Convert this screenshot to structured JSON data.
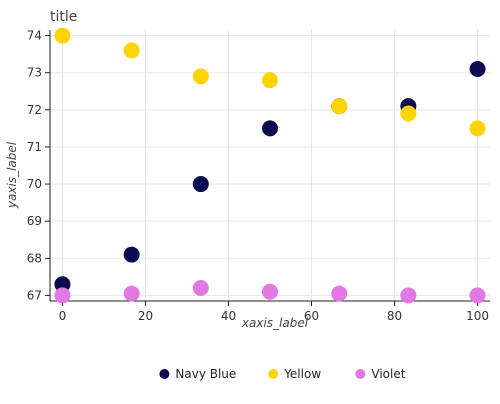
{
  "chart_data": {
    "type": "scatter",
    "title": "title",
    "xlabel": "xaxis_label",
    "ylabel": "yaxis_label",
    "x": [
      0,
      16.67,
      33.33,
      50,
      66.67,
      83.33,
      100
    ],
    "series": [
      {
        "name": "Navy Blue",
        "color": "#0b0b4f",
        "values": [
          67.3,
          68.1,
          70.0,
          71.5,
          72.1,
          72.1,
          73.1
        ]
      },
      {
        "name": "Yellow",
        "color": "#ffd400",
        "values": [
          74.0,
          73.6,
          72.9,
          72.8,
          72.1,
          71.9,
          71.5
        ]
      },
      {
        "name": "Violet",
        "color": "#e279e2",
        "values": [
          67.0,
          67.05,
          67.2,
          67.1,
          67.05,
          67.0,
          67.0
        ]
      }
    ],
    "xlim": [
      -3,
      103
    ],
    "ylim": [
      66.85,
      74.15
    ],
    "xticks": [
      0,
      20,
      40,
      60,
      80,
      100
    ],
    "yticks": [
      67,
      68,
      69,
      70,
      71,
      72,
      73,
      74
    ],
    "grid": true,
    "legend_position": "bottom"
  }
}
